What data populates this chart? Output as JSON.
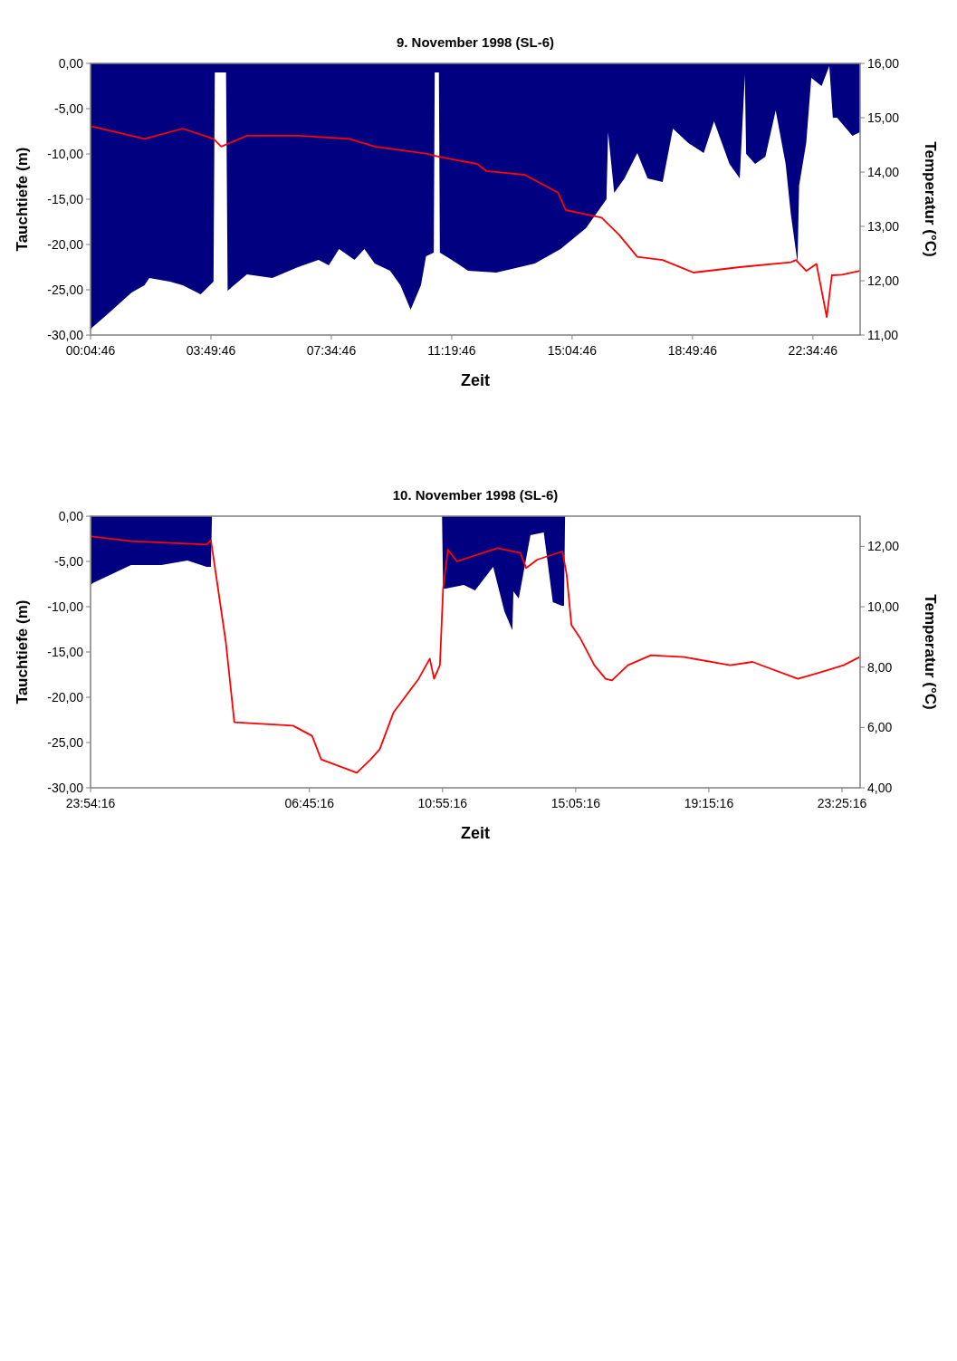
{
  "chart_data": [
    {
      "type": "line",
      "title": "9. November 1998 (SL-6)",
      "xlabel": "Zeit",
      "ylabel": "Tauchtiefe (m)",
      "y2label": "Temperatur (°C)",
      "xlim": [
        0.0794,
        24.05
      ],
      "xticks": [
        {
          "value": 0.0794,
          "label": "00:04:46"
        },
        {
          "value": 3.8294,
          "label": "03:49:46"
        },
        {
          "value": 7.5794,
          "label": "07:34:46"
        },
        {
          "value": 11.3294,
          "label": "11:19:46"
        },
        {
          "value": 15.0794,
          "label": "15:04:46"
        },
        {
          "value": 18.8294,
          "label": "18:49:46"
        },
        {
          "value": 22.5794,
          "label": "22:34:46"
        }
      ],
      "ylim": [
        -30,
        0
      ],
      "yticks": [
        {
          "value": -30,
          "label": "-30,00"
        },
        {
          "value": -25,
          "label": "-25,00"
        },
        {
          "value": -20,
          "label": "-20,00"
        },
        {
          "value": -15,
          "label": "-15,00"
        },
        {
          "value": -10,
          "label": "-10,00"
        },
        {
          "value": -5,
          "label": "-5,00"
        },
        {
          "value": 0,
          "label": "0,00"
        }
      ],
      "y2lim": [
        11,
        16
      ],
      "y2ticks": [
        {
          "value": 11,
          "label": "11,00"
        },
        {
          "value": 12,
          "label": "12,00"
        },
        {
          "value": 13,
          "label": "13,00"
        },
        {
          "value": 14,
          "label": "14,00"
        },
        {
          "value": 15,
          "label": "15,00"
        },
        {
          "value": 16,
          "label": "16,00"
        }
      ],
      "grid": false,
      "series": [
        {
          "type": "area",
          "color": "#000080",
          "x": [
            0.08,
            0.12,
            0.64,
            1.36,
            1.76,
            1.91,
            2.55,
            2.95,
            3.51,
            3.91,
            3.95,
            4.3,
            4.35,
            4.95,
            5.74,
            6.54,
            7.18,
            7.5,
            7.82,
            8.3,
            8.61,
            8.93,
            9.41,
            9.73,
            10.05,
            10.37,
            10.53,
            10.77,
            10.8,
            10.93,
            10.96,
            11.33,
            11.84,
            12.72,
            13.92,
            14.72,
            15.51,
            16.15,
            16.2,
            16.39,
            16.71,
            17.11,
            17.43,
            17.9,
            18.22,
            18.7,
            19.18,
            19.5,
            19.98,
            20.3,
            20.46,
            20.5,
            20.78,
            21.1,
            21.42,
            21.73,
            21.89,
            22.1,
            22.15,
            22.37,
            22.53,
            22.85,
            23.09,
            23.2,
            23.33,
            23.81,
            24.04
          ],
          "values": [
            -29.5,
            -29.2,
            -27.6,
            -25.3,
            -24.5,
            -23.7,
            -24.1,
            -24.5,
            -25.5,
            -24.1,
            -1,
            -1,
            -25.1,
            -23.3,
            -23.7,
            -22.5,
            -21.7,
            -22.3,
            -20.5,
            -21.7,
            -20.5,
            -22.1,
            -22.9,
            -24.5,
            -27.2,
            -24.5,
            -21.3,
            -20.9,
            -1,
            -1,
            -20.9,
            -21.7,
            -22.9,
            -23.1,
            -22.1,
            -20.5,
            -18.2,
            -15,
            -7.6,
            -14.3,
            -12.7,
            -9.9,
            -12.7,
            -13.1,
            -7.2,
            -8.8,
            -9.9,
            -6.4,
            -11.1,
            -12.7,
            -1.3,
            -10,
            -11.1,
            -10.3,
            -5.2,
            -11.1,
            -16.6,
            -22,
            -13.5,
            -8.8,
            -1.6,
            -2.5,
            -0.3,
            -6,
            -6,
            -8,
            -7.6
          ]
        },
        {
          "axis": "y2",
          "color": "#ff0000",
          "x": [
            0.12,
            1.76,
            2.95,
            3.91,
            4.15,
            4.95,
            6.54,
            8.14,
            8.93,
            10.53,
            10.93,
            12.12,
            12.4,
            13.6,
            14.64,
            14.88,
            16.0,
            16.55,
            17.11,
            17.9,
            18.86,
            20.3,
            21.89,
            22.05,
            22.37,
            22.69,
            23.01,
            23.17,
            23.49,
            24.04
          ],
          "values": [
            14.84,
            14.61,
            14.8,
            14.61,
            14.47,
            14.67,
            14.67,
            14.61,
            14.47,
            14.34,
            14.28,
            14.15,
            14.02,
            13.95,
            13.62,
            13.3,
            13.16,
            12.84,
            12.44,
            12.38,
            12.15,
            12.25,
            12.34,
            12.38,
            12.18,
            12.31,
            11.33,
            12.1,
            12.11,
            12.18
          ]
        }
      ]
    },
    {
      "type": "line",
      "title": "10. November 1998 (SL-6)",
      "xlabel": "Zeit",
      "ylabel": "Tauchtiefe (m)",
      "y2label": "Temperatur (°C)",
      "xlim": [
        "1998-11-09T23:54",
        "1998-11-10T23:59"
      ],
      "xticks": [
        {
          "value": "1998-11-09T23:54",
          "label": "23:54:16"
        },
        {
          "value": "1998-11-10T06:45",
          "label": "06:45:16"
        },
        {
          "value": "1998-11-10T10:55",
          "label": "10:55:16"
        },
        {
          "value": "1998-11-10T15:05",
          "label": "15:05:16"
        },
        {
          "value": "1998-11-10T19:15",
          "label": "19:15:16"
        },
        {
          "value": "1998-11-10T23:25",
          "label": "23:25:16"
        }
      ],
      "ylim": [
        -30,
        0
      ],
      "yticks": [
        {
          "value": -30,
          "label": "-30,00"
        },
        {
          "value": -25,
          "label": "-25,00"
        },
        {
          "value": -20,
          "label": "-20,00"
        },
        {
          "value": -15,
          "label": "-15,00"
        },
        {
          "value": -10,
          "label": "-10,00"
        },
        {
          "value": -5,
          "label": "-5,00"
        },
        {
          "value": 0,
          "label": "0,00"
        }
      ],
      "y2lim": [
        4,
        13
      ],
      "y2ticks": [
        {
          "value": 4,
          "label": "4,00"
        },
        {
          "value": 6,
          "label": "6,00"
        },
        {
          "value": 8,
          "label": "8,00"
        },
        {
          "value": 10,
          "label": "10,00"
        },
        {
          "value": 12,
          "label": "12,00"
        }
      ],
      "grid": false,
      "series": [
        {
          "type": "area",
          "color": "#000080",
          "x": [
            "1998-11-09T23:55",
            "1998-11-09T23:58",
            "1998-11-10T00:34",
            "1998-11-10T01:10",
            "1998-11-10T02:07",
            "1998-11-10T02:56",
            "1998-11-10T03:32",
            "1998-11-10T03:40",
            "1998-11-10T03:42",
            "1998-11-10T10:54",
            "1998-11-10T10:56",
            "1998-11-10T11:01",
            "1998-11-10T11:35",
            "1998-11-10T11:56",
            "1998-11-10T12:30",
            "1998-11-10T12:51",
            "1998-11-10T13:06",
            "1998-11-10T13:08",
            "1998-11-10T13:18",
            "1998-11-10T13:40",
            "1998-11-10T14:05",
            "1998-11-10T14:22",
            "1998-11-10T14:39",
            "1998-11-10T14:43",
            "1998-11-10T14:45",
            "1998-11-10T23:59"
          ],
          "values": [
            -7.6,
            -7.4,
            -6.4,
            -5.4,
            -5.4,
            -4.9,
            -5.6,
            -5.6,
            0,
            0,
            -8,
            -8,
            -7.6,
            -8.2,
            -5.6,
            -10.5,
            -12.6,
            -8.3,
            -9.1,
            -2.1,
            -1.8,
            -9.5,
            -9.9,
            -9.9,
            0,
            0
          ]
        },
        {
          "axis": "y2",
          "color": "#ff0000",
          "x": [
            "1998-11-09T23:55",
            "1998-11-10T01:10",
            "1998-11-10T03:32",
            "1998-11-10T03:40",
            "1998-11-10T03:45",
            "1998-11-10T04:08",
            "1998-11-10T04:24",
            "1998-11-10T06:14",
            "1998-11-10T06:50",
            "1998-11-10T07:07",
            "1998-11-10T08:14",
            "1998-11-10T08:40",
            "1998-11-10T08:57",
            "1998-11-10T09:23",
            "1998-11-10T10:10",
            "1998-11-10T10:31",
            "1998-11-10T10:39",
            "1998-11-10T10:50",
            "1998-11-10T10:56",
            "1998-11-10T11:05",
            "1998-11-10T11:22",
            "1998-11-10T12:38",
            "1998-11-10T13:21",
            "1998-11-10T13:32",
            "1998-11-10T13:53",
            "1998-11-10T14:40",
            "1998-11-10T14:48",
            "1998-11-10T14:57",
            "1998-11-10T15:14",
            "1998-11-10T15:40",
            "1998-11-10T16:01",
            "1998-11-10T16:13",
            "1998-11-10T16:43",
            "1998-11-10T17:26",
            "1998-11-10T18:29",
            "1998-11-10T19:55",
            "1998-11-10T20:37",
            "1998-11-10T22:02",
            "1998-11-10T22:45",
            "1998-11-10T23:28",
            "1998-11-10T23:58"
          ],
          "values": [
            12.33,
            12.17,
            12.06,
            12.2,
            11.61,
            8.83,
            6.17,
            6.06,
            5.72,
            4.94,
            4.5,
            4.94,
            5.28,
            6.5,
            7.61,
            8.28,
            7.61,
            8.06,
            10.6,
            11.89,
            11.5,
            11.94,
            11.78,
            11.28,
            11.56,
            11.83,
            11.06,
            9.39,
            8.94,
            8.06,
            7.61,
            7.56,
            8.06,
            8.39,
            8.33,
            8.06,
            8.17,
            7.61,
            7.83,
            8.06,
            8.33
          ]
        }
      ]
    }
  ]
}
